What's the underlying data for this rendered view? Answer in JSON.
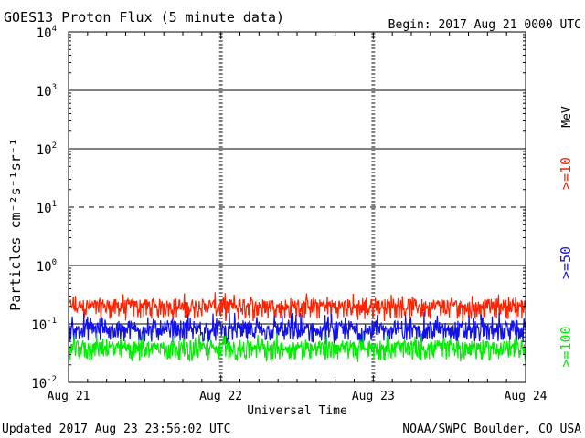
{
  "chart_data": {
    "type": "line",
    "title": "GOES13 Proton Flux (5 minute data)",
    "begin": "Begin: 2017 Aug 21 0000 UTC",
    "xlabel": "Universal Time",
    "ylabel": "Particles cm⁻²s⁻¹sr⁻¹",
    "y_scale": "log",
    "ylim": [
      0.01,
      10000
    ],
    "y_ticks": [
      {
        "base": "10",
        "exp": "4"
      },
      {
        "base": "10",
        "exp": "3"
      },
      {
        "base": "10",
        "exp": "2"
      },
      {
        "base": "10",
        "exp": "1"
      },
      {
        "base": "10",
        "exp": "0"
      },
      {
        "base": "10",
        "exp": "-1"
      },
      {
        "base": "10",
        "exp": "-2"
      }
    ],
    "x_ticks": [
      "Aug 21",
      "Aug 22",
      "Aug 23",
      "Aug 24"
    ],
    "xlim": [
      "2017-08-21",
      "2017-08-24"
    ],
    "threshold_lines": [
      {
        "value": 1000,
        "style": "solid"
      },
      {
        "value": 100,
        "style": "solid"
      },
      {
        "value": 10,
        "style": "dashed"
      },
      {
        "value": 1,
        "style": "solid"
      },
      {
        "value": 0.1,
        "style": "solid"
      }
    ],
    "units_label": "MeV",
    "series": [
      {
        "name": ">=10",
        "color": "#ff2200",
        "typical": 0.18,
        "range": [
          0.11,
          0.35
        ]
      },
      {
        "name": ">=50",
        "color": "#1111ee",
        "typical": 0.07,
        "range": [
          0.045,
          0.16
        ]
      },
      {
        "name": ">=100",
        "color": "#00ee00",
        "typical": 0.035,
        "range": [
          0.022,
          0.07
        ]
      }
    ],
    "grid": false
  },
  "footer": {
    "updated": "Updated 2017 Aug 23 23:56:02 UTC",
    "source": "NOAA/SWPC Boulder, CO USA"
  }
}
